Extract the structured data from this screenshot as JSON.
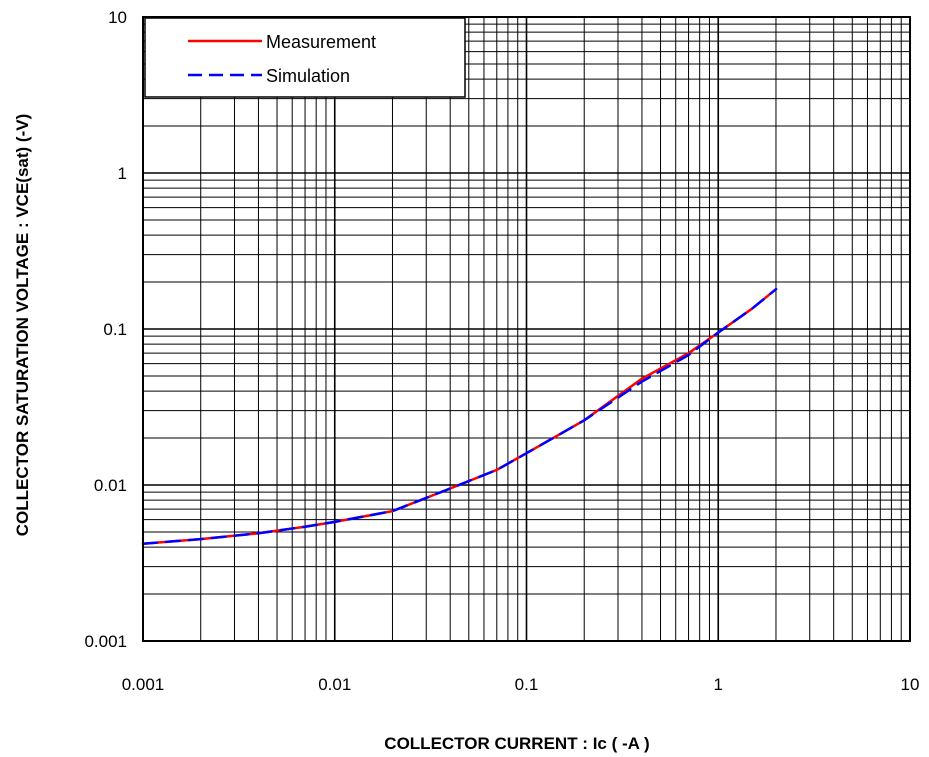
{
  "chart_data": {
    "type": "line",
    "title": "",
    "xlabel": "COLLECTOR CURRENT : Ic ( -A )",
    "ylabel": "COLLECTOR SATURATION VOLTAGE : VCE(sat) (-V)",
    "xscale": "log",
    "yscale": "log",
    "xlim": [
      0.001,
      10
    ],
    "ylim": [
      0.001,
      10
    ],
    "x_ticks": [
      "0.001",
      "0.01",
      "0.1",
      "1",
      "10"
    ],
    "y_ticks": [
      "0.001",
      "0.01",
      "0.1",
      "1",
      "10"
    ],
    "grid": true,
    "legend_position": "top-left",
    "series": [
      {
        "name": "Measurement",
        "color": "#ff0000",
        "style": "solid",
        "x": [
          0.001,
          0.002,
          0.004,
          0.007,
          0.01,
          0.02,
          0.04,
          0.07,
          0.1,
          0.2,
          0.4,
          0.7,
          1,
          1.5,
          2
        ],
        "y": [
          0.0042,
          0.0045,
          0.0049,
          0.0054,
          0.0058,
          0.0068,
          0.0095,
          0.0125,
          0.016,
          0.026,
          0.048,
          0.07,
          0.095,
          0.135,
          0.18
        ]
      },
      {
        "name": "Simulation",
        "color": "#0000ff",
        "style": "dashed",
        "x": [
          0.001,
          0.002,
          0.004,
          0.007,
          0.01,
          0.02,
          0.04,
          0.07,
          0.1,
          0.2,
          0.4,
          0.7,
          1,
          1.5,
          2
        ],
        "y": [
          0.0042,
          0.0045,
          0.0049,
          0.0054,
          0.0058,
          0.0068,
          0.0095,
          0.0125,
          0.016,
          0.026,
          0.046,
          0.068,
          0.095,
          0.135,
          0.18
        ]
      }
    ]
  }
}
